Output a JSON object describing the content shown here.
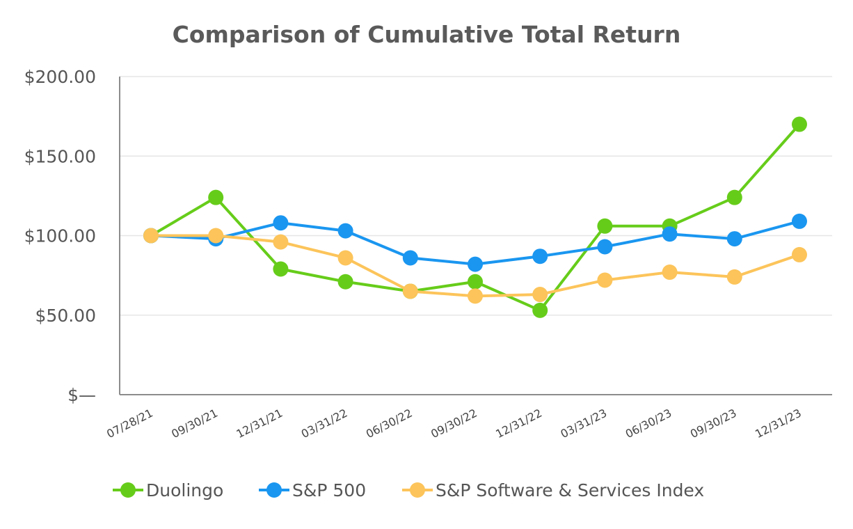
{
  "chart_data": {
    "type": "line",
    "title": "Comparison of Cumulative Total Return",
    "xlabel": "",
    "ylabel": "",
    "categories": [
      "07/28/21",
      "09/30/21",
      "12/31/21",
      "03/31/22",
      "06/30/22",
      "09/30/22",
      "12/31/22",
      "03/31/23",
      "06/30/23",
      "09/30/23",
      "12/31/23"
    ],
    "ylim": [
      0,
      200
    ],
    "yticks": [
      {
        "value": 0,
        "label": "$—"
      },
      {
        "value": 50,
        "label": "$50.00"
      },
      {
        "value": 100,
        "label": "$100.00"
      },
      {
        "value": 150,
        "label": "$150.00"
      },
      {
        "value": 200,
        "label": "$200.00"
      }
    ],
    "grid": true,
    "legend_position": "bottom",
    "series": [
      {
        "name": "Duolingo",
        "color": "#66cc1a",
        "values": [
          100,
          124,
          79,
          71,
          65,
          71,
          53,
          106,
          106,
          124,
          170
        ]
      },
      {
        "name": "S&P 500",
        "color": "#1a96f0",
        "values": [
          100,
          98,
          108,
          103,
          86,
          82,
          87,
          93,
          101,
          98,
          109
        ]
      },
      {
        "name": "S&P Software & Services Index",
        "color": "#fcc45a",
        "values": [
          100,
          100,
          96,
          86,
          65,
          62,
          63,
          72,
          77,
          74,
          88
        ]
      }
    ]
  }
}
